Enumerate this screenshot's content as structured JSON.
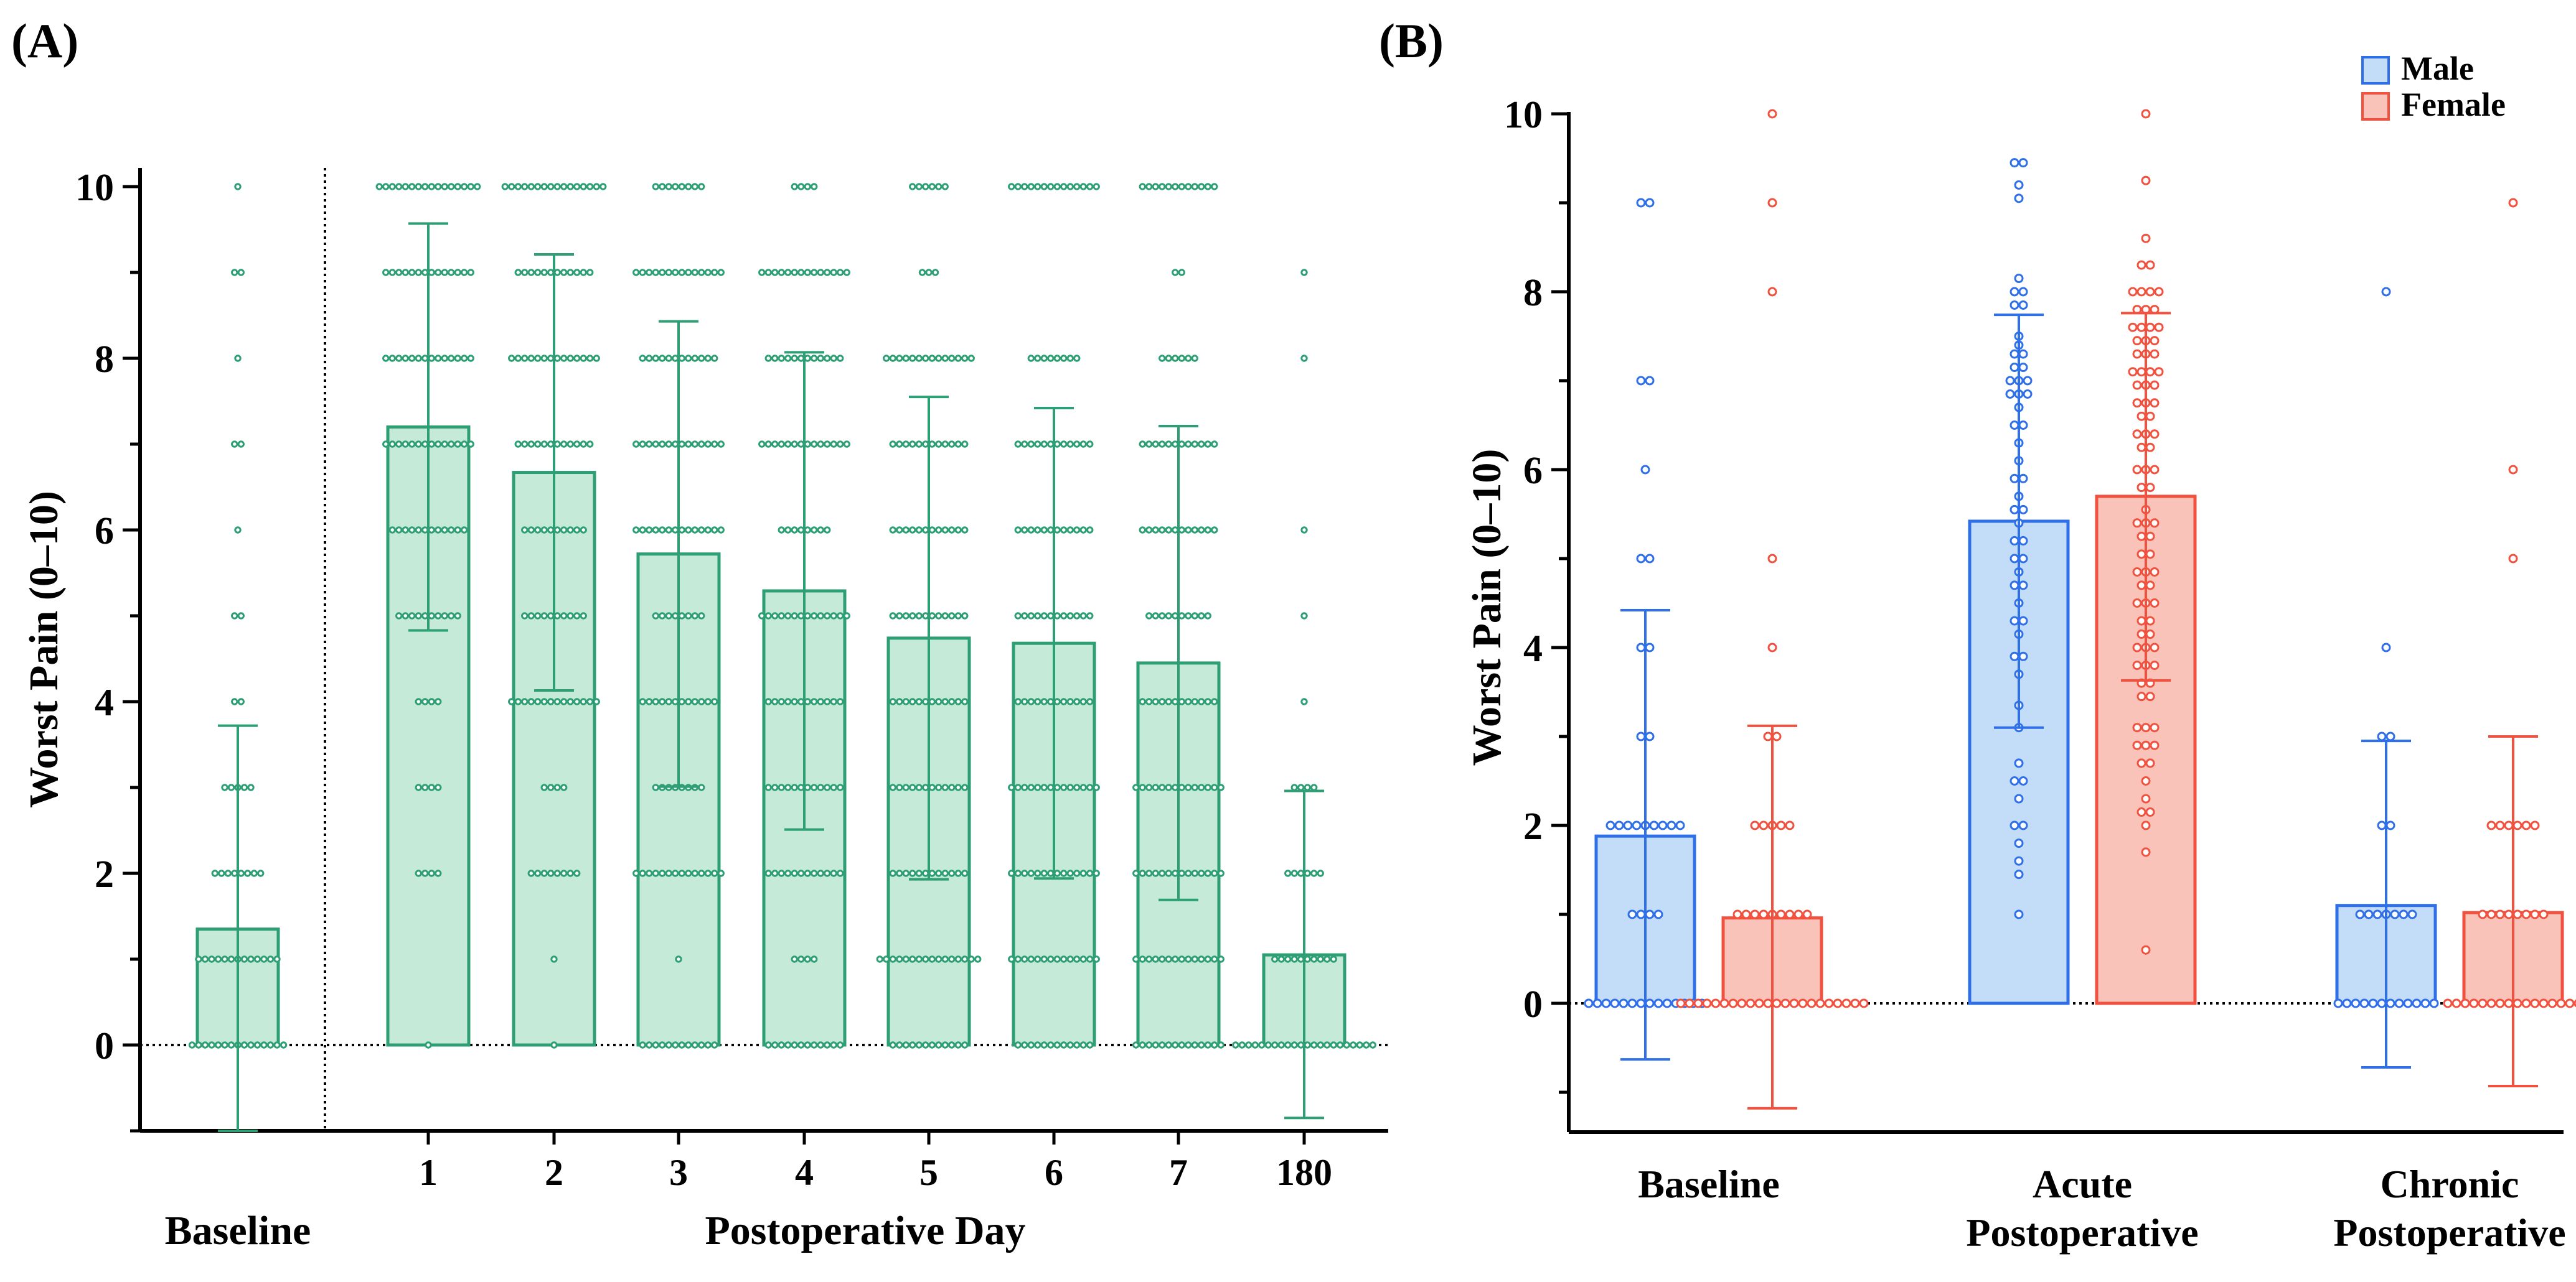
{
  "chart_data": [
    {
      "panel_label": "(A)",
      "type": "bar",
      "ylabel": "Worst Pain (0–10)",
      "ylim": [
        -1,
        10.2
      ],
      "yticks": [
        0,
        2,
        4,
        6,
        8,
        10
      ],
      "group_labels": [
        "Baseline",
        "Postoperative Day"
      ],
      "categories": [
        "",
        "1",
        "2",
        "3",
        "4",
        "5",
        "6",
        "7",
        "180"
      ],
      "category_names": [
        "Baseline",
        "Day 1",
        "Day 2",
        "Day 3",
        "Day 4",
        "Day 5",
        "Day 6",
        "Day 7",
        "Day 180"
      ],
      "means": [
        1.35,
        7.2,
        6.67,
        5.72,
        5.29,
        4.74,
        4.68,
        4.45,
        1.05
      ],
      "sd_upper": [
        3.72,
        9.57,
        9.21,
        8.43,
        8.07,
        7.55,
        7.42,
        7.21,
        2.96
      ],
      "sd_lower": [
        -1.0,
        4.83,
        4.13,
        3.01,
        2.51,
        1.93,
        1.94,
        1.69,
        -0.85
      ],
      "color": "#2e9e75",
      "fill": "#c6ead8",
      "points": [
        {
          "value": 10,
          "n": 1
        },
        {
          "value": 9,
          "n": 2
        },
        {
          "value": 8,
          "n": 1
        },
        {
          "value": 7,
          "n": 2
        },
        {
          "value": 6,
          "n": 1
        },
        {
          "value": 5,
          "n": 2
        },
        {
          "value": 4,
          "n": 2
        },
        {
          "value": 3,
          "n": 5
        },
        {
          "value": 2,
          "n": 8
        },
        {
          "value": 1,
          "n": 13
        },
        {
          "value": 0,
          "n": 15
        }
      ],
      "points_by_category": [
        [
          [
            10,
            1
          ],
          [
            9,
            2
          ],
          [
            8,
            1
          ],
          [
            7,
            2
          ],
          [
            6,
            1
          ],
          [
            5,
            2
          ],
          [
            4,
            2
          ],
          [
            3,
            5
          ],
          [
            2,
            8
          ],
          [
            1,
            13
          ],
          [
            0,
            15
          ]
        ],
        [
          [
            10,
            16
          ],
          [
            9,
            14
          ],
          [
            8,
            14
          ],
          [
            7,
            14
          ],
          [
            6,
            12
          ],
          [
            5,
            10
          ],
          [
            4,
            4
          ],
          [
            3,
            4
          ],
          [
            2,
            4
          ],
          [
            0,
            1
          ]
        ],
        [
          [
            10,
            16
          ],
          [
            9,
            12
          ],
          [
            8,
            14
          ],
          [
            7,
            12
          ],
          [
            6,
            10
          ],
          [
            5,
            10
          ],
          [
            4,
            14
          ],
          [
            3,
            4
          ],
          [
            2,
            8
          ],
          [
            1,
            1
          ],
          [
            0,
            1
          ]
        ],
        [
          [
            10,
            8
          ],
          [
            9,
            14
          ],
          [
            8,
            12
          ],
          [
            7,
            14
          ],
          [
            6,
            14
          ],
          [
            5,
            8
          ],
          [
            4,
            12
          ],
          [
            3,
            8
          ],
          [
            2,
            14
          ],
          [
            1,
            1
          ],
          [
            0,
            12
          ]
        ],
        [
          [
            10,
            4
          ],
          [
            9,
            14
          ],
          [
            8,
            12
          ],
          [
            7,
            14
          ],
          [
            6,
            8
          ],
          [
            5,
            14
          ],
          [
            4,
            12
          ],
          [
            3,
            12
          ],
          [
            2,
            12
          ],
          [
            1,
            4
          ],
          [
            0,
            12
          ]
        ],
        [
          [
            10,
            6
          ],
          [
            9,
            3
          ],
          [
            8,
            14
          ],
          [
            7,
            12
          ],
          [
            6,
            12
          ],
          [
            5,
            12
          ],
          [
            4,
            12
          ],
          [
            3,
            12
          ],
          [
            2,
            12
          ],
          [
            1,
            16
          ],
          [
            0,
            12
          ]
        ],
        [
          [
            10,
            14
          ],
          [
            8,
            8
          ],
          [
            7,
            12
          ],
          [
            6,
            12
          ],
          [
            5,
            12
          ],
          [
            4,
            12
          ],
          [
            3,
            14
          ],
          [
            2,
            14
          ],
          [
            1,
            14
          ],
          [
            0,
            12
          ]
        ],
        [
          [
            10,
            12
          ],
          [
            9,
            2
          ],
          [
            8,
            6
          ],
          [
            7,
            12
          ],
          [
            6,
            12
          ],
          [
            5,
            10
          ],
          [
            4,
            12
          ],
          [
            3,
            14
          ],
          [
            2,
            14
          ],
          [
            1,
            14
          ],
          [
            0,
            14
          ]
        ],
        [
          [
            9,
            1
          ],
          [
            8,
            1
          ],
          [
            6,
            1
          ],
          [
            5,
            1
          ],
          [
            4,
            1
          ],
          [
            3,
            4
          ],
          [
            2,
            6
          ],
          [
            1,
            10
          ],
          [
            0,
            22
          ]
        ]
      ]
    },
    {
      "panel_label": "(B)",
      "type": "bar",
      "ylabel": "Worst Pain (0–10)",
      "ylim": [
        -1.5,
        10
      ],
      "yticks": [
        0,
        2,
        4,
        6,
        8,
        10
      ],
      "categories": [
        "Baseline",
        "Acute Postoperative",
        "Chronic Postoperative"
      ],
      "category_lines": [
        [
          "Baseline"
        ],
        [
          "Acute",
          "Postoperative"
        ],
        [
          "Chronic",
          "Postoperative"
        ]
      ],
      "legend": {
        "position": "top-right",
        "entries": [
          "Male",
          "Female"
        ]
      },
      "series": [
        {
          "name": "Male",
          "color": "#2f6fe8",
          "fill": "#c3dcf8",
          "means": [
            1.88,
            5.42,
            1.1
          ],
          "sd_upper": [
            4.42,
            7.74,
            2.95
          ],
          "sd_lower": [
            -0.63,
            3.1,
            -0.72
          ],
          "points": [
            [
              [
                9,
                2
              ],
              [
                7,
                2
              ],
              [
                6,
                1
              ],
              [
                5,
                2
              ],
              [
                4,
                2
              ],
              [
                3,
                2
              ],
              [
                2,
                9
              ],
              [
                1,
                4
              ],
              [
                0,
                14
              ]
            ],
            [
              [
                9.45,
                2
              ],
              [
                9.2,
                1
              ],
              [
                9.05,
                1
              ],
              [
                8.15,
                1
              ],
              [
                8.0,
                2
              ],
              [
                7.85,
                2
              ],
              [
                7.5,
                1
              ],
              [
                7.4,
                1
              ],
              [
                7.3,
                2
              ],
              [
                7.15,
                2
              ],
              [
                7.0,
                3
              ],
              [
                6.85,
                3
              ],
              [
                6.7,
                1
              ],
              [
                6.5,
                2
              ],
              [
                6.3,
                1
              ],
              [
                6.1,
                1
              ],
              [
                5.9,
                2
              ],
              [
                5.7,
                1
              ],
              [
                5.55,
                2
              ],
              [
                5.4,
                1
              ],
              [
                5.2,
                2
              ],
              [
                5.0,
                2
              ],
              [
                4.85,
                1
              ],
              [
                4.7,
                2
              ],
              [
                4.5,
                1
              ],
              [
                4.3,
                2
              ],
              [
                4.15,
                1
              ],
              [
                3.9,
                2
              ],
              [
                3.7,
                1
              ],
              [
                3.35,
                1
              ],
              [
                3.1,
                1
              ],
              [
                2.7,
                1
              ],
              [
                2.5,
                2
              ],
              [
                2.3,
                1
              ],
              [
                2.0,
                2
              ],
              [
                1.8,
                1
              ],
              [
                1.6,
                1
              ],
              [
                1.45,
                1
              ],
              [
                1.0,
                1
              ]
            ],
            [
              [
                8,
                1
              ],
              [
                4,
                1
              ],
              [
                3,
                2
              ],
              [
                2,
                2
              ],
              [
                1,
                7
              ],
              [
                0,
                12
              ]
            ]
          ]
        },
        {
          "name": "Female",
          "color": "#f0523f",
          "fill": "#f9c3b9",
          "means": [
            0.96,
            5.7,
            1.02
          ],
          "sd_upper": [
            3.12,
            7.76,
            3.0
          ],
          "sd_lower": [
            -1.18,
            3.63,
            -0.93
          ],
          "points": [
            [
              [
                10,
                1
              ],
              [
                9,
                1
              ],
              [
                8,
                1
              ],
              [
                5,
                1
              ],
              [
                4,
                1
              ],
              [
                3,
                2
              ],
              [
                2,
                5
              ],
              [
                1,
                9
              ],
              [
                0,
                22
              ]
            ],
            [
              [
                10,
                1
              ],
              [
                9.25,
                1
              ],
              [
                8.6,
                1
              ],
              [
                8.3,
                2
              ],
              [
                8.0,
                4
              ],
              [
                7.8,
                3
              ],
              [
                7.6,
                4
              ],
              [
                7.45,
                3
              ],
              [
                7.3,
                3
              ],
              [
                7.1,
                4
              ],
              [
                6.95,
                3
              ],
              [
                6.75,
                3
              ],
              [
                6.6,
                2
              ],
              [
                6.4,
                3
              ],
              [
                6.25,
                2
              ],
              [
                6.0,
                3
              ],
              [
                5.8,
                2
              ],
              [
                5.55,
                1
              ],
              [
                5.4,
                3
              ],
              [
                5.25,
                2
              ],
              [
                5.05,
                2
              ],
              [
                4.85,
                3
              ],
              [
                4.7,
                2
              ],
              [
                4.5,
                3
              ],
              [
                4.3,
                2
              ],
              [
                4.15,
                2
              ],
              [
                4.0,
                3
              ],
              [
                3.8,
                3
              ],
              [
                3.6,
                2
              ],
              [
                3.45,
                2
              ],
              [
                3.1,
                3
              ],
              [
                2.9,
                3
              ],
              [
                2.7,
                2
              ],
              [
                2.5,
                1
              ],
              [
                2.3,
                1
              ],
              [
                2.15,
                2
              ],
              [
                2.0,
                1
              ],
              [
                1.7,
                1
              ],
              [
                0.6,
                1
              ]
            ],
            [
              [
                9,
                1
              ],
              [
                6,
                1
              ],
              [
                5,
                1
              ],
              [
                2,
                6
              ],
              [
                1,
                8
              ],
              [
                0,
                16
              ]
            ]
          ]
        }
      ]
    }
  ]
}
